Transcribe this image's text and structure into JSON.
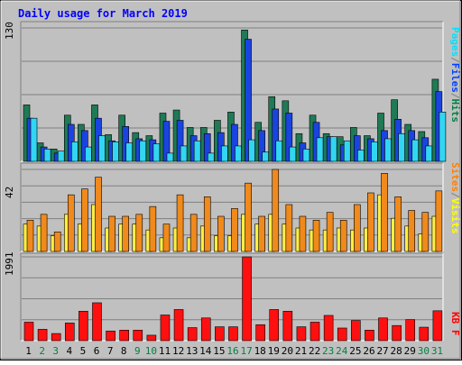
{
  "chart_data": {
    "type": "bar",
    "title": "Daily usage for March 2019",
    "categories": [
      "1",
      "2",
      "3",
      "4",
      "5",
      "6",
      "7",
      "8",
      "9",
      "10",
      "11",
      "12",
      "13",
      "14",
      "15",
      "16",
      "17",
      "18",
      "19",
      "20",
      "21",
      "22",
      "23",
      "24",
      "25",
      "26",
      "27",
      "28",
      "29",
      "30",
      "31"
    ],
    "weekend_days": [
      "2",
      "3",
      "9",
      "10",
      "16",
      "17",
      "23",
      "24",
      "30",
      "31"
    ],
    "panels": [
      {
        "id": "hits-files-pages",
        "ymax_label": "130",
        "ymax": 130,
        "legend": [
          {
            "text": "Pages",
            "color": "#00e0ff"
          },
          {
            "text": "Files",
            "color": "#0040ff"
          },
          {
            "text": "Hits",
            "color": "#008040"
          }
        ],
        "series": [
          {
            "name": "Hits",
            "color": "#1f7a55",
            "values": [
              55,
              18,
              12,
              45,
              36,
              55,
              26,
              45,
              28,
              25,
              47,
              50,
              33,
              33,
              40,
              48,
              128,
              38,
              63,
              59,
              27,
              45,
              27,
              24,
              33,
              25,
              47,
              60,
              36,
              29,
              80
            ]
          },
          {
            "name": "Files",
            "color": "#1a44e0",
            "values": [
              42,
              14,
              8,
              36,
              30,
              42,
              20,
              34,
              22,
              21,
              39,
              40,
              25,
              27,
              28,
              36,
              119,
              30,
              51,
              47,
              18,
              38,
              24,
              16,
              25,
              22,
              30,
              41,
              30,
              23,
              68
            ]
          },
          {
            "name": "Pages",
            "color": "#33d6f2",
            "values": [
              42,
              12,
              10,
              19,
              14,
              25,
              19,
              18,
              20,
              17,
              8,
              15,
              20,
              8,
              15,
              15,
              21,
              9,
              20,
              14,
              12,
              23,
              24,
              20,
              11,
              19,
              22,
              27,
              21,
              15,
              48
            ]
          }
        ]
      },
      {
        "id": "visits-sites",
        "ymax_label": "42",
        "ymax": 42,
        "legend": [
          {
            "text": "Sites",
            "color": "#ff8000"
          },
          {
            "text": "/",
            "color": "#808080"
          },
          {
            "text": "Visits",
            "color": "#ffff00"
          }
        ],
        "series": [
          {
            "name": "Visits",
            "color": "#ffef45",
            "values": [
              14,
              13,
              8,
              19,
              14,
              24,
              12,
              14,
              14,
              11,
              7,
              12,
              7,
              13,
              8,
              8,
              19,
              14,
              19,
              14,
              12,
              11,
              11,
              12,
              11,
              12,
              29,
              17,
              13,
              9,
              18
            ]
          },
          {
            "name": "Sites",
            "color": "#f08a1c",
            "values": [
              16,
              19,
              10,
              29,
              32,
              38,
              18,
              18,
              19,
              23,
              14,
              29,
              19,
              28,
              18,
              22,
              35,
              18,
              42,
              24,
              18,
              16,
              20,
              16,
              24,
              30,
              40,
              28,
              21,
              20,
              31
            ]
          }
        ]
      },
      {
        "id": "kbytes",
        "ymax_label": "1991",
        "ymax": 1991,
        "legend": [
          {
            "text": "KB F",
            "color": "#ff0000"
          }
        ],
        "series": [
          {
            "name": "KB F",
            "color": "#ff1010",
            "values": [
              440,
              270,
              170,
              420,
              700,
              900,
              230,
              250,
              250,
              130,
              610,
              740,
              310,
              540,
              330,
              330,
              1991,
              380,
              740,
              700,
              330,
              440,
              600,
              300,
              480,
              250,
              540,
              360,
              500,
              320,
              710
            ]
          }
        ]
      }
    ]
  }
}
